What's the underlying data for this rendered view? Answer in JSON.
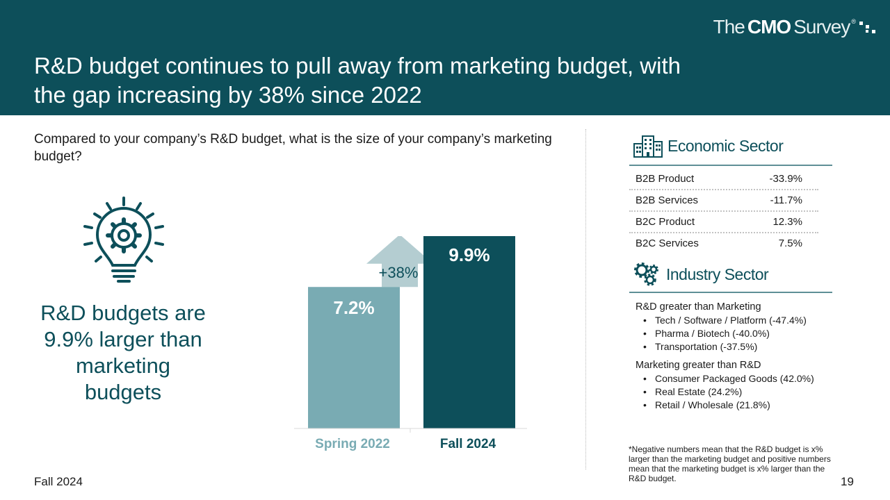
{
  "header": {
    "title_line1": "R&D budget continues to pull away from marketing budget, with",
    "title_line2": "the gap increasing by 38% since 2022",
    "logo": {
      "part1": "The",
      "part2": "CMO",
      "part3": "Survey",
      "reg": "®"
    }
  },
  "question": "Compared to your company’s R&D budget, what is the size of your company’s marketing budget?",
  "callout": "R&D budgets are 9.9% larger than marketing budgets",
  "chart_data": {
    "type": "bar",
    "categories": [
      "Spring 2022",
      "Fall 2024"
    ],
    "values": [
      7.2,
      9.9
    ],
    "value_labels": [
      "7.2%",
      "9.9%"
    ],
    "colors": [
      "#79abb3",
      "#0d4f5a"
    ],
    "label_colors": [
      "#79abb3",
      "#0d4f5a"
    ],
    "annotation": "+38%",
    "ylim": [
      0,
      10.6
    ]
  },
  "economic": {
    "heading": "Economic Sector",
    "rows": [
      {
        "label": "B2B Product",
        "value": "-33.9%"
      },
      {
        "label": "B2B Services",
        "value": "-11.7%"
      },
      {
        "label": "B2C Product",
        "value": "12.3%"
      },
      {
        "label": "B2C Services",
        "value": "7.5%"
      }
    ]
  },
  "industry": {
    "heading": "Industry Sector",
    "groups": [
      {
        "title": "R&D greater than Marketing",
        "items": [
          "Tech / Software / Platform (-47.4%)",
          "Pharma / Biotech (-40.0%)",
          "Transportation (-37.5%)"
        ]
      },
      {
        "title": "Marketing greater than R&D",
        "items": [
          "Consumer Packaged Goods (42.0%)",
          "Real Estate (24.2%)",
          "Retail / Wholesale (21.8%)"
        ]
      }
    ]
  },
  "footnote": "*Negative numbers mean that the R&D budget is x% larger than the marketing budget and positive numbers mean that the marketing budget is x% larger than the R&D budget.",
  "footer": {
    "left": "Fall 2024",
    "page": "19"
  },
  "colors": {
    "teal_dark": "#0d4f5a",
    "teal_light": "#79abb3",
    "arrow": "#b4cdd1"
  },
  "icons": {
    "bulb": "lightbulb-gear-icon",
    "building": "building-icon",
    "gears": "gears-icon",
    "logo_mark": "logo-dots-icon"
  }
}
